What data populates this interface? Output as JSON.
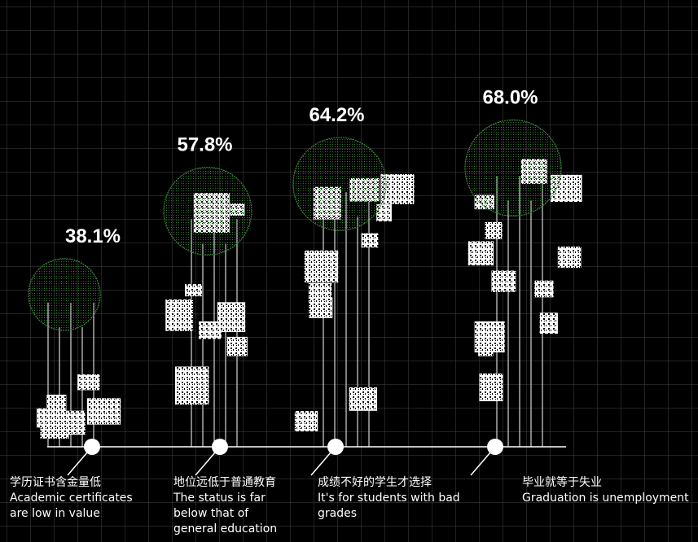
{
  "chart_data": {
    "type": "bubble",
    "categories": [
      "学历证书含金量低",
      "地位远低于普通教育",
      "成绩不好的学生才选择",
      "毕业就等于失业"
    ],
    "category_descriptions": [
      "Academic certificates are low in value",
      "The status is far below that of general education",
      "It's for students with bad grades",
      "Graduation is unemployment"
    ],
    "values": [
      38.1,
      57.8,
      64.2,
      68.0
    ],
    "value_labels": [
      "38.1%",
      "57.8%",
      "64.2%",
      "68.0%"
    ],
    "color": "#3a8a3a"
  }
}
